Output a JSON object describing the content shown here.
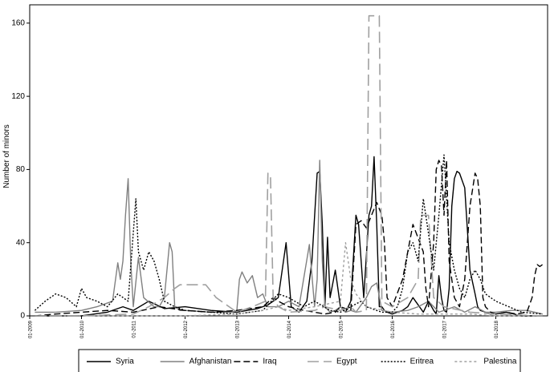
{
  "chart_data": {
    "type": "line",
    "title": "",
    "xlabel": "",
    "ylabel": "Number of minors",
    "ylim": [
      0,
      170
    ],
    "xlim": [
      2009.0,
      2019.0
    ],
    "y_ticks": [
      0,
      40,
      80,
      120,
      160
    ],
    "x_ticks": [
      {
        "value": 2009.0,
        "label": "01-2009"
      },
      {
        "value": 2010.0,
        "label": "01-2010"
      },
      {
        "value": 2011.0,
        "label": "01-2011"
      },
      {
        "value": 2012.0,
        "label": "01-2012"
      },
      {
        "value": 2013.0,
        "label": "01-2013"
      },
      {
        "value": 2014.0,
        "label": "01-2014"
      },
      {
        "value": 2015.0,
        "label": "01-2015"
      },
      {
        "value": 2016.0,
        "label": "01-2016"
      },
      {
        "value": 2017.0,
        "label": "01-2017"
      },
      {
        "value": 2018.0,
        "label": "01-2018"
      }
    ],
    "legend_position": "bottom",
    "series": [
      {
        "name": "Syria",
        "color": "#000000",
        "dash": "",
        "width": 1.4,
        "x": [
          2009.1,
          2010.0,
          2010.5,
          2010.8,
          2011.0,
          2011.3,
          2011.6,
          2012.0,
          2012.5,
          2013.0,
          2013.4,
          2013.6,
          2013.8,
          2013.95,
          2014.05,
          2014.2,
          2014.35,
          2014.45,
          2014.55,
          2014.6,
          2014.65,
          2014.7,
          2014.75,
          2014.8,
          2014.9,
          2015.0,
          2015.1,
          2015.2,
          2015.3,
          2015.35,
          2015.45,
          2015.55,
          2015.6,
          2015.65,
          2015.7,
          2015.75,
          2015.8,
          2015.85,
          2015.9,
          2016.0,
          2016.1,
          2016.2,
          2016.3,
          2016.4,
          2016.5,
          2016.6,
          2016.7,
          2016.8,
          2016.85,
          2016.9,
          2016.95,
          2017.0,
          2017.05,
          2017.1,
          2017.15,
          2017.2,
          2017.25,
          2017.3,
          2017.4,
          2017.5,
          2017.6,
          2017.65,
          2017.7,
          2017.8,
          2017.9,
          2018.0,
          2018.2,
          2018.5,
          2018.8,
          2018.9
        ],
        "y": [
          0,
          0,
          2,
          5,
          3,
          8,
          4,
          5,
          3,
          2,
          4,
          6,
          10,
          40,
          5,
          2,
          8,
          30,
          78,
          79,
          50,
          5,
          43,
          10,
          25,
          5,
          2,
          8,
          55,
          50,
          10,
          55,
          60,
          87,
          50,
          5,
          5,
          3,
          2,
          1,
          2,
          3,
          5,
          10,
          6,
          2,
          8,
          3,
          1,
          22,
          10,
          3,
          2,
          15,
          60,
          75,
          79,
          78,
          70,
          25,
          12,
          5,
          3,
          2,
          1,
          1,
          2,
          0,
          0,
          0
        ]
      },
      {
        "name": "Afghanistan",
        "color": "#808080",
        "dash": "",
        "width": 1.4,
        "x": [
          2009.1,
          2009.5,
          2010.0,
          2010.3,
          2010.6,
          2010.7,
          2010.75,
          2010.8,
          2010.85,
          2010.9,
          2010.95,
          2011.0,
          2011.1,
          2011.2,
          2011.4,
          2011.5,
          2011.6,
          2011.7,
          2011.75,
          2011.8,
          2011.9,
          2012.0,
          2012.5,
          2012.9,
          2013.0,
          2013.05,
          2013.1,
          2013.2,
          2013.3,
          2013.4,
          2013.5,
          2013.6,
          2013.8,
          2014.0,
          2014.2,
          2014.4,
          2014.5,
          2014.55,
          2014.6,
          2014.65,
          2014.7,
          2014.8,
          2014.9,
          2015.0,
          2015.1,
          2015.2,
          2015.3,
          2015.5,
          2015.6,
          2015.7,
          2015.8,
          2016.0,
          2016.3,
          2016.5,
          2016.7,
          2016.9,
          2017.0,
          2017.2,
          2017.4,
          2017.6,
          2017.8,
          2018.0,
          2018.3,
          2018.6,
          2018.9
        ],
        "y": [
          2,
          2,
          3,
          5,
          8,
          29,
          20,
          30,
          55,
          75,
          30,
          5,
          32,
          10,
          5,
          5,
          10,
          40,
          35,
          5,
          3,
          3,
          2,
          2,
          3,
          20,
          24,
          18,
          22,
          10,
          12,
          5,
          5,
          8,
          5,
          39,
          5,
          20,
          85,
          30,
          5,
          2,
          3,
          5,
          2,
          3,
          2,
          10,
          16,
          18,
          3,
          2,
          3,
          5,
          8,
          2,
          3,
          5,
          2,
          5,
          2,
          2,
          3,
          3,
          1
        ]
      },
      {
        "name": "Iraq",
        "color": "#000000",
        "dash": "8,4",
        "width": 1.4,
        "x": [
          2009.1,
          2009.5,
          2010.0,
          2010.5,
          2011.0,
          2011.5,
          2012.0,
          2012.5,
          2013.0,
          2013.5,
          2013.7,
          2013.8,
          2014.0,
          2014.3,
          2014.5,
          2014.7,
          2014.9,
          2015.0,
          2015.2,
          2015.3,
          2015.4,
          2015.5,
          2015.6,
          2015.7,
          2015.8,
          2015.85,
          2015.9,
          2016.0,
          2016.2,
          2016.4,
          2016.6,
          2016.65,
          2016.7,
          2016.8,
          2016.85,
          2016.9,
          2016.95,
          2017.0,
          2017.05,
          2017.1,
          2017.2,
          2017.3,
          2017.4,
          2017.5,
          2017.6,
          2017.65,
          2017.7,
          2017.75,
          2017.8,
          2017.9,
          2018.0,
          2018.2,
          2018.4,
          2018.6,
          2018.7,
          2018.75,
          2018.8,
          2018.85,
          2018.9
        ],
        "y": [
          0,
          1,
          2,
          3,
          2,
          5,
          3,
          2,
          3,
          5,
          10,
          8,
          5,
          3,
          2,
          1,
          2,
          5,
          3,
          50,
          52,
          48,
          55,
          62,
          55,
          40,
          10,
          5,
          20,
          50,
          35,
          15,
          5,
          40,
          80,
          85,
          82,
          55,
          85,
          30,
          10,
          5,
          20,
          60,
          78,
          75,
          60,
          10,
          5,
          2,
          1,
          2,
          1,
          2,
          10,
          22,
          28,
          27,
          28
        ]
      },
      {
        "name": "Egypt",
        "color": "#a0a0a0",
        "dash": "14,6",
        "width": 1.6,
        "x": [
          2009.1,
          2010.0,
          2011.0,
          2011.3,
          2011.6,
          2011.8,
          2011.9,
          2012.0,
          2012.4,
          2012.6,
          2013.0,
          2013.3,
          2013.55,
          2013.6,
          2013.65,
          2013.7,
          2013.8,
          2014.0,
          2014.5,
          2014.7,
          2015.0,
          2015.2,
          2015.3,
          2015.5,
          2015.55,
          2015.6,
          2015.7,
          2015.75,
          2015.8,
          2016.0,
          2016.3,
          2016.5,
          2016.55,
          2016.7,
          2016.8,
          2017.0,
          2017.5,
          2018.0,
          2018.9
        ],
        "y": [
          0,
          0,
          1,
          5,
          10,
          15,
          17,
          17,
          17,
          10,
          2,
          5,
          8,
          78,
          76,
          10,
          5,
          2,
          3,
          5,
          3,
          5,
          2,
          3,
          164,
          164,
          164,
          164,
          8,
          5,
          10,
          20,
          55,
          55,
          10,
          5,
          2,
          1,
          0
        ]
      },
      {
        "name": "Eritrea",
        "color": "#000000",
        "dash": "2,2",
        "width": 1.4,
        "x": [
          2009.1,
          2009.3,
          2009.5,
          2009.7,
          2009.9,
          2010.0,
          2010.1,
          2010.3,
          2010.5,
          2010.7,
          2010.9,
          2011.05,
          2011.1,
          2011.2,
          2011.3,
          2011.4,
          2011.5,
          2011.6,
          2011.8,
          2012.0,
          2012.5,
          2013.0,
          2013.5,
          2013.8,
          2014.0,
          2014.3,
          2014.5,
          2014.8,
          2015.0,
          2015.2,
          2015.4,
          2015.5,
          2015.7,
          2015.8,
          2016.0,
          2016.1,
          2016.2,
          2016.3,
          2016.4,
          2016.5,
          2016.6,
          2016.7,
          2016.8,
          2016.9,
          2017.0,
          2017.1,
          2017.2,
          2017.3,
          2017.4,
          2017.5,
          2017.6,
          2017.7,
          2017.8,
          2018.0,
          2018.5,
          2018.9
        ],
        "y": [
          3,
          8,
          12,
          10,
          5,
          15,
          10,
          8,
          5,
          12,
          8,
          64,
          35,
          25,
          35,
          30,
          20,
          8,
          5,
          3,
          2,
          1,
          3,
          12,
          10,
          5,
          8,
          3,
          2,
          5,
          8,
          5,
          3,
          2,
          2,
          5,
          15,
          35,
          40,
          30,
          64,
          45,
          25,
          55,
          88,
          40,
          25,
          15,
          10,
          20,
          25,
          20,
          12,
          8,
          2,
          1
        ]
      },
      {
        "name": "Palestina",
        "color": "#a0a0a0",
        "dash": "3,3",
        "width": 1.4,
        "x": [
          2009.1,
          2010.0,
          2011.0,
          2012.0,
          2013.0,
          2013.5,
          2013.8,
          2014.0,
          2014.5,
          2015.0,
          2015.1,
          2015.2,
          2015.3,
          2015.5,
          2016.0,
          2016.5,
          2017.0,
          2017.5,
          2018.0,
          2018.9
        ],
        "y": [
          0,
          0,
          0,
          0,
          1,
          3,
          5,
          3,
          5,
          8,
          40,
          20,
          12,
          5,
          2,
          1,
          1,
          1,
          0,
          0
        ]
      }
    ]
  }
}
